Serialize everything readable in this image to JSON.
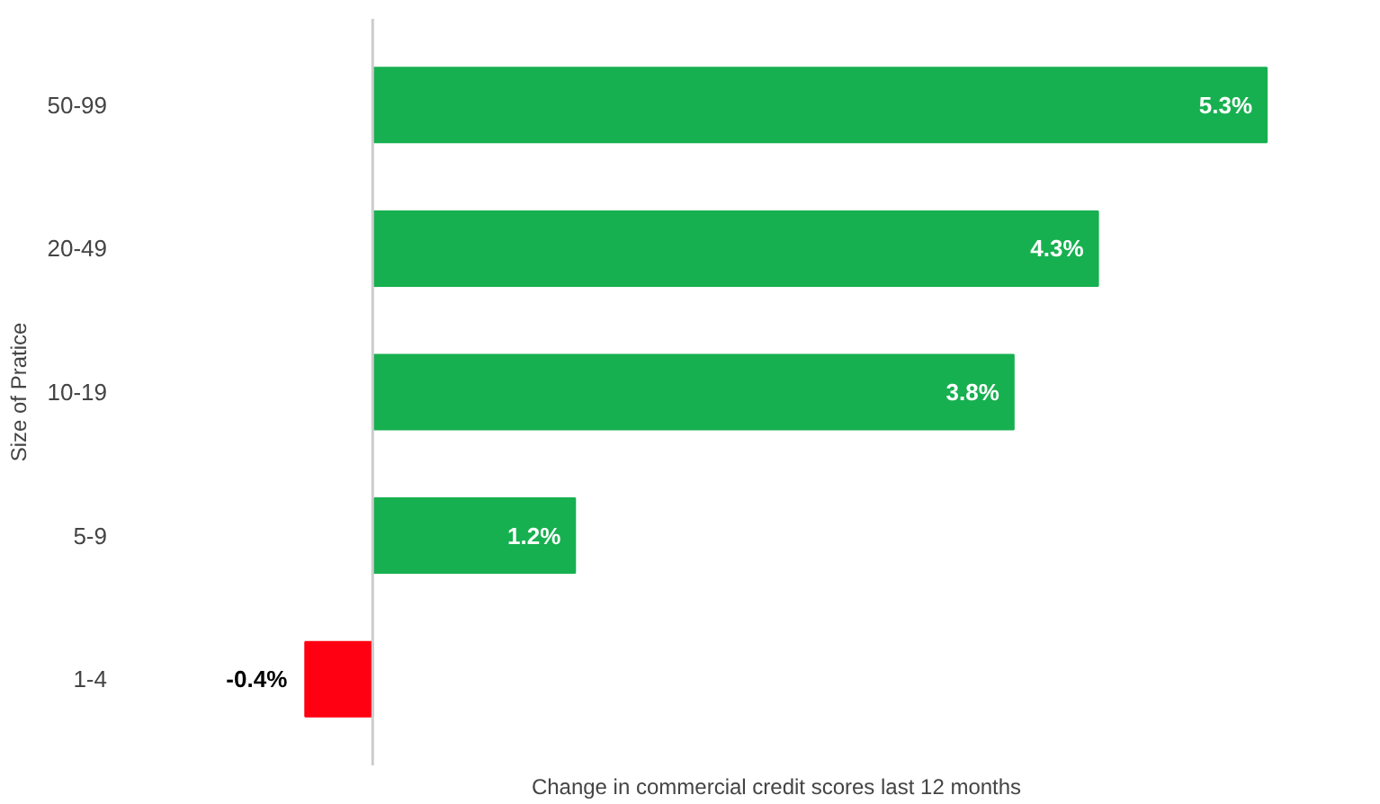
{
  "chart_data": {
    "type": "bar",
    "orientation": "horizontal",
    "xlabel": "Change in commercial credit scores last 12 months",
    "ylabel": "Size of Pratice",
    "categories": [
      "50-99",
      "20-49",
      "10-19",
      "5-9",
      "1-4"
    ],
    "values": [
      5.3,
      4.3,
      3.8,
      1.2,
      -0.4
    ],
    "colors": [
      "#17b050",
      "#17b050",
      "#17b050",
      "#17b050",
      "#ff0012"
    ],
    "value_labels": [
      "5.3%",
      "4.3%",
      "3.8%",
      "1.2%",
      "-0.4%"
    ],
    "grid": false
  }
}
